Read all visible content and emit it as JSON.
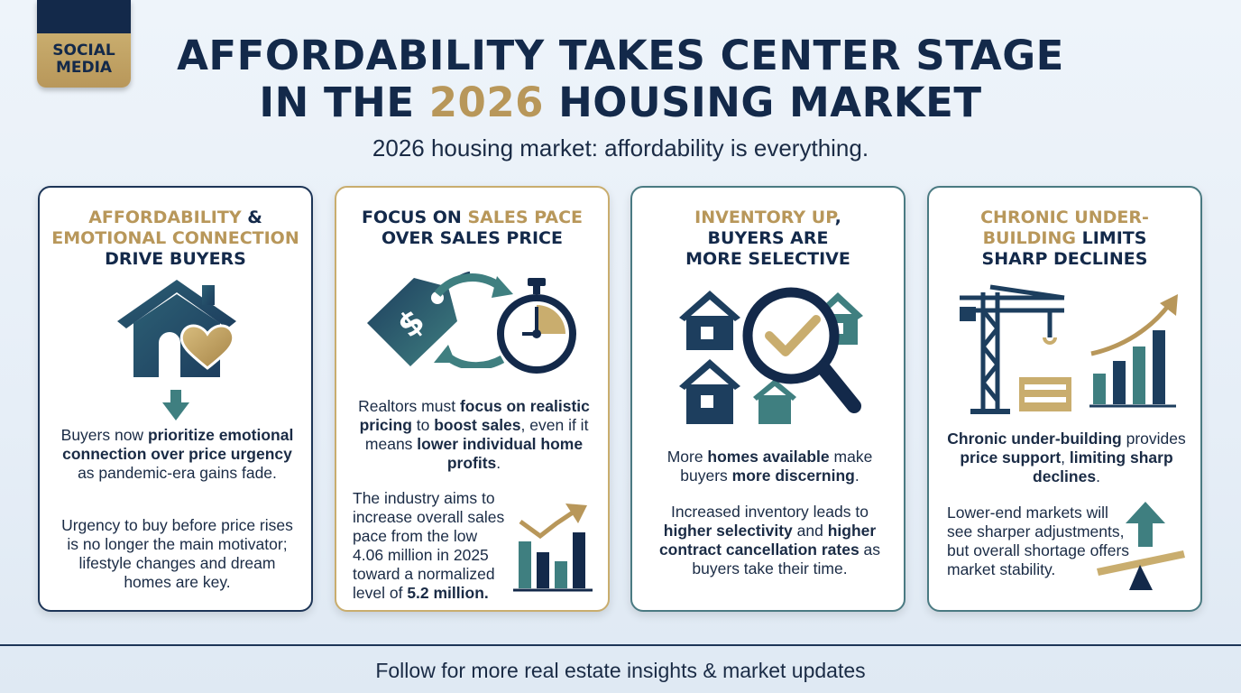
{
  "badge": "SOCIAL MEDIA",
  "title": {
    "line1": "AFFORDABILITY TAKES CENTER STAGE",
    "line2_pre": "IN THE ",
    "line2_year": "2026",
    "line2_post": " HOUSING MARKET"
  },
  "subtitle": "2026 housing market: affordability is everything.",
  "colors": {
    "navy": "#13294a",
    "gold": "#b8975a",
    "teal": "#3f7f80"
  },
  "cards": [
    {
      "head": {
        "g1": "AFFORDABILITY",
        "n1": " &",
        "g2": "EMOTIONAL CONNECTION",
        "n2": "DRIVE BUYERS"
      },
      "icons": [
        "house-heart-icon",
        "arrow-down-icon"
      ],
      "p1": {
        "a": "Buyers now ",
        "b1": "prioritize emotional connection over price urgency",
        "c": " as pandemic-era gains fade."
      },
      "p2": "Urgency to buy before price rises is no longer the main motivator; lifestyle changes and dream homes are key."
    },
    {
      "head": {
        "n1": "FOCUS ON ",
        "g1": "SALES PACE",
        "n2": "OVER SALES PRICE"
      },
      "icons": [
        "price-tag-icon",
        "stopwatch-icon",
        "cycle-arrows-icon",
        "bar-chart-icon"
      ],
      "p1": {
        "a": "Realtors must ",
        "b1": "focus on realistic pricing",
        "c": " to ",
        "b2": "boost sales",
        "d": ", even if it means ",
        "b3": "lower individual home profits",
        "e": "."
      },
      "p2": {
        "a": "The industry aims to increase overall sales pace from the low 4.06 million in 2025 toward a normalized level of ",
        "b": "5.2 million."
      }
    },
    {
      "head": {
        "g1": "INVENTORY UP",
        "n1": ",",
        "n2": "BUYERS ARE",
        "n3": "MORE SELECTIVE"
      },
      "icons": [
        "houses-icon",
        "magnifier-check-icon"
      ],
      "p1": {
        "a": "More ",
        "b1": "homes available",
        "c": " make buyers ",
        "b2": "more discerning",
        "d": "."
      },
      "p2": {
        "a": "Increased inventory leads to ",
        "b1": "higher selectivity",
        "c": " and ",
        "b2": "higher contract cancellation rates",
        "d": " as buyers take their time."
      }
    },
    {
      "head": {
        "g1": "CHRONIC UNDER-",
        "g2": "BUILDING",
        "n1": " LIMITS",
        "n2": "SHARP DECLINES"
      },
      "icons": [
        "crane-icon",
        "rising-chart-icon",
        "balance-arrow-icon"
      ],
      "p1": {
        "b1": "Chronic under-building",
        "a": " provides ",
        "b2": "price support",
        "c": ", ",
        "b3": "limiting sharp declines",
        "d": "."
      },
      "p2": "Lower-end markets will see sharper adjustments, but overall shortage offers market stability."
    }
  ],
  "footer": "Follow for more real estate insights & market updates"
}
